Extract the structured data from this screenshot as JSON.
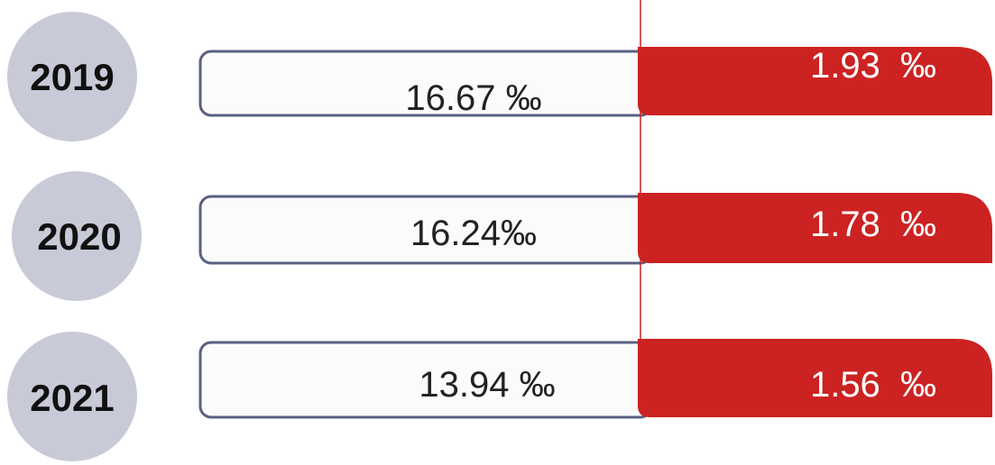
{
  "rows": [
    {
      "year": "2019",
      "left": "16.67 ‰",
      "right": "1.93  ‰"
    },
    {
      "year": "2020",
      "left": "16.24‰",
      "right": "1.78  ‰"
    },
    {
      "year": "2021",
      "left": "13.94 ‰",
      "right": "1.56  ‰"
    }
  ]
}
